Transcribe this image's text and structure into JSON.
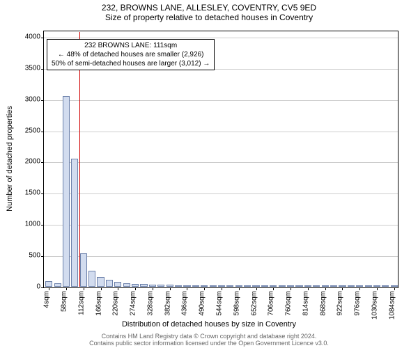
{
  "title_line1": "232, BROWNS LANE, ALLESLEY, COVENTRY, CV5 9ED",
  "title_line2": "Size of property relative to detached houses in Coventry",
  "ylabel": "Number of detached properties",
  "xlabel": "Distribution of detached houses by size in Coventry",
  "footer_line1": "Contains HM Land Registry data © Crown copyright and database right 2024.",
  "footer_line2": "Contains public sector information licensed under the Open Government Licence v3.0.",
  "chart": {
    "type": "bar",
    "ylim": [
      0,
      4100
    ],
    "ytick_step": 500,
    "ymax_tick": 4000,
    "xtick_step": 2,
    "xtick_suffix": "sqm",
    "bar_fill": "#d2dcef",
    "bar_stroke": "#6a7fa9",
    "background": "#ffffff",
    "grid_color": "#cccccc",
    "categories": [
      4,
      31,
      58,
      85,
      112,
      139,
      166,
      193,
      220,
      247,
      274,
      301,
      328,
      355,
      382,
      409,
      436,
      463,
      490,
      517,
      544,
      571,
      598,
      625,
      652,
      679,
      706,
      733,
      760,
      787,
      814,
      841,
      868,
      895,
      922,
      949,
      976,
      1003,
      1030,
      1057,
      1084
    ],
    "values": [
      90,
      60,
      3050,
      2050,
      540,
      260,
      160,
      110,
      80,
      55,
      45,
      40,
      35,
      30,
      30,
      25,
      25,
      20,
      20,
      15,
      15,
      15,
      15,
      12,
      12,
      10,
      10,
      10,
      10,
      10,
      10,
      8,
      8,
      8,
      8,
      6,
      6,
      6,
      6,
      5,
      5
    ],
    "marker": {
      "x_value": 111,
      "color": "#d00000"
    },
    "annotation": {
      "lines": [
        "232 BROWNS LANE: 111sqm",
        "← 48% of detached houses are smaller (2,926)",
        "50% of semi-detached houses are larger (3,012) →"
      ],
      "top_fraction_from_top": 0.03,
      "border_color": "#000000",
      "font_size": 10
    }
  }
}
